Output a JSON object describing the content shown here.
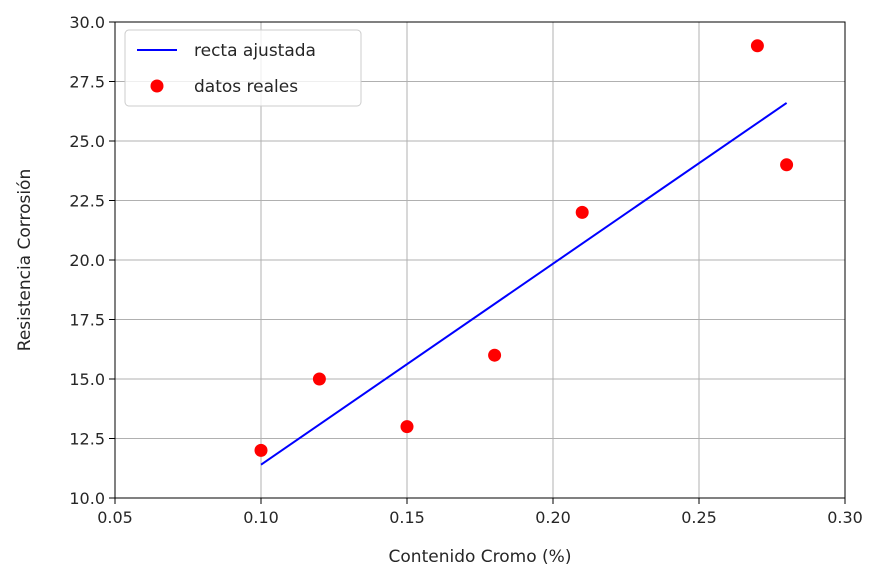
{
  "chart_data": {
    "type": "scatter",
    "xlabel": "Contenido Cromo (%)",
    "ylabel": "Resistencia Corrosión",
    "xlim": [
      0.05,
      0.3
    ],
    "ylim": [
      10.0,
      30.0
    ],
    "xticks": [
      "0.05",
      "0.10",
      "0.15",
      "0.20",
      "0.25",
      "0.30"
    ],
    "yticks": [
      "10.0",
      "12.5",
      "15.0",
      "17.5",
      "20.0",
      "22.5",
      "25.0",
      "27.5",
      "30.0"
    ],
    "grid": true,
    "legend_position": "top-left",
    "series": [
      {
        "name": "recta ajustada",
        "kind": "line",
        "color": "#0000ff",
        "x": [
          0.1,
          0.28
        ],
        "y": [
          11.4,
          26.6
        ]
      },
      {
        "name": "datos reales",
        "kind": "scatter",
        "color": "#ff0000",
        "x": [
          0.1,
          0.12,
          0.15,
          0.18,
          0.21,
          0.27,
          0.28
        ],
        "y": [
          12.0,
          15.0,
          13.0,
          16.0,
          22.0,
          29.0,
          24.0
        ]
      }
    ]
  }
}
